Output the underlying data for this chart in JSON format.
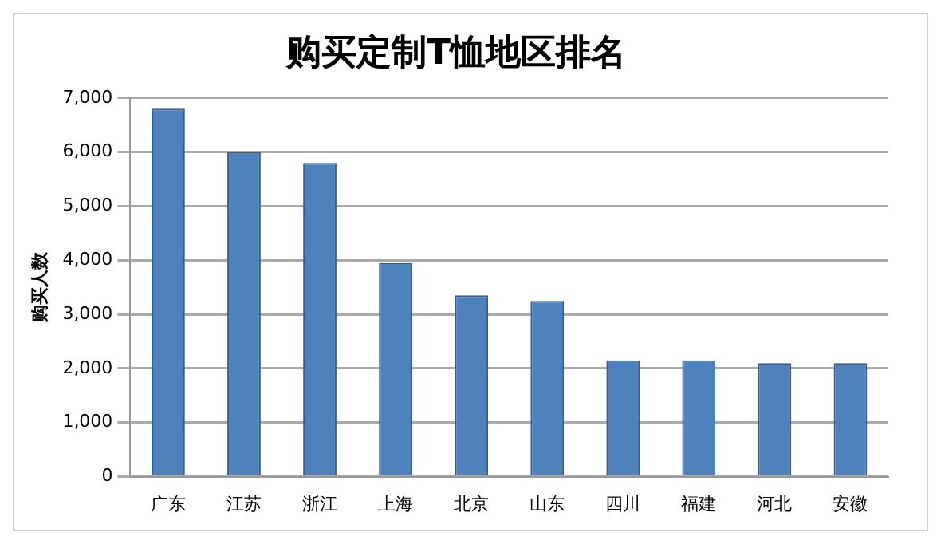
{
  "chart_data": {
    "type": "bar",
    "title": "购买定制T恤地区排名",
    "ylabel": "购买人数",
    "categories": [
      "广东",
      "江苏",
      "浙江",
      "上海",
      "北京",
      "山东",
      "四川",
      "福建",
      "河北",
      "安徽"
    ],
    "values": [
      6800,
      6000,
      5800,
      3950,
      3350,
      3250,
      2150,
      2150,
      2100,
      2100
    ],
    "color": "#4f81bd",
    "ylim": [
      0,
      7000
    ],
    "yticks": [
      0,
      {
        "value": 1000,
        "label": "1,000"
      },
      {
        "value": 2000,
        "label": "2,000"
      },
      {
        "value": 3000,
        "label": "3,000"
      },
      {
        "value": 4000,
        "label": "4,000"
      },
      {
        "value": 5000,
        "label": "5,000"
      },
      {
        "value": 6000,
        "label": "6,000"
      },
      {
        "value": 7000,
        "label": "7,000"
      }
    ],
    "grid": "y"
  }
}
